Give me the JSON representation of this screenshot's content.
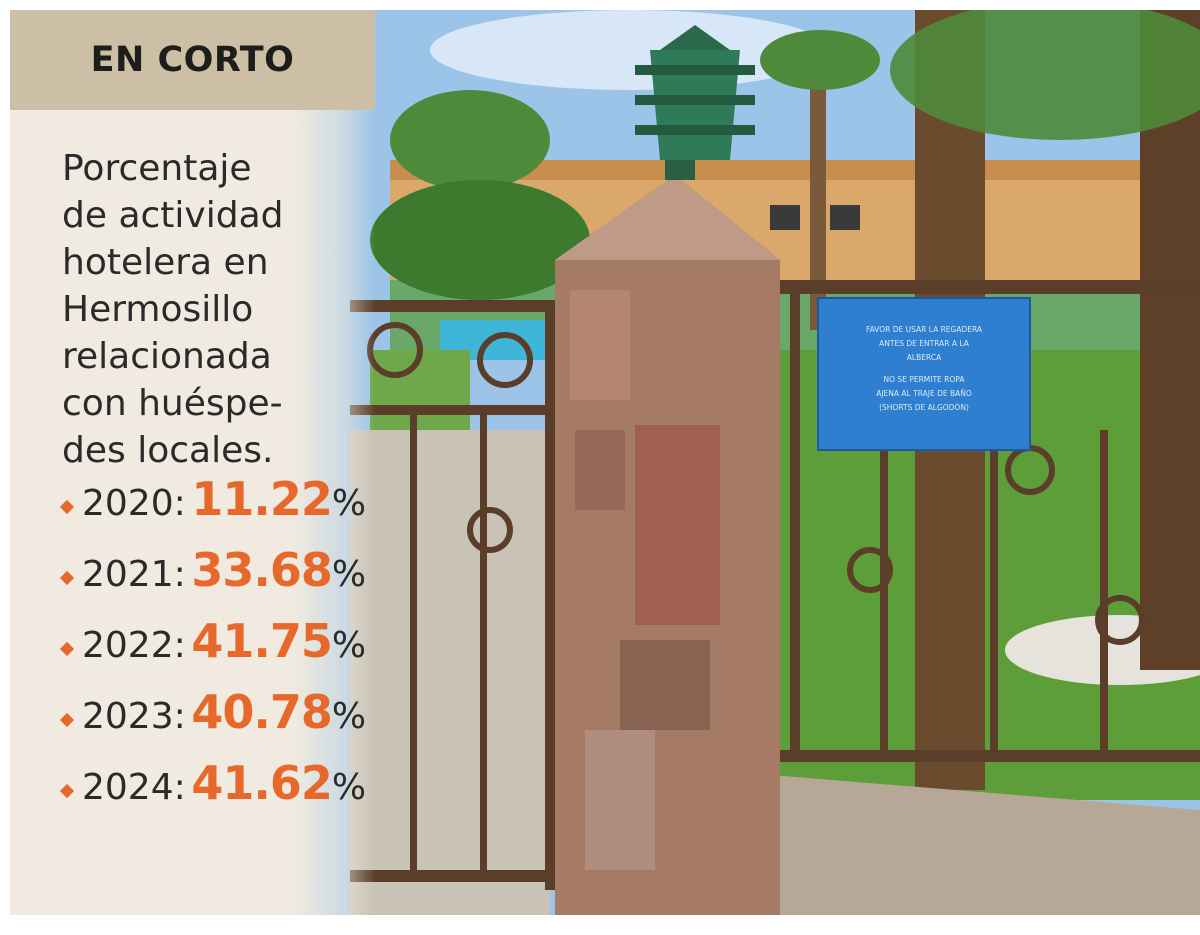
{
  "header": {
    "title": "EN CORTO"
  },
  "description": [
    "Porcentaje",
    "de actividad",
    "hotelera en",
    "Hermosillo",
    "relacionada",
    "con huéspe-",
    "des locales."
  ],
  "stats": [
    {
      "label": "2020:",
      "value": "11.22",
      "unit": "%"
    },
    {
      "label": "2021:",
      "value": "33.68",
      "unit": "%"
    },
    {
      "label": "2022:",
      "value": "41.75",
      "unit": "%"
    },
    {
      "label": "2023:",
      "value": "40.78",
      "unit": "%"
    },
    {
      "label": "2024:",
      "value": "41.62",
      "unit": "%"
    }
  ],
  "colors": {
    "accent": "#e6682b",
    "header_band": "#cdbfa6",
    "sidebar_bg": "#f0eae0",
    "sign_blue": "#2f7fd0"
  },
  "photo": {
    "sign_text": [
      "FAVOR DE USAR LA REGADERA",
      "ANTES DE ENTRAR A LA",
      "ALBERCA",
      "NO SE PERMITE ROPA",
      "AJENA AL TRAJE DE BAÑO",
      "(SHORTS DE ALGODÓN)"
    ]
  }
}
